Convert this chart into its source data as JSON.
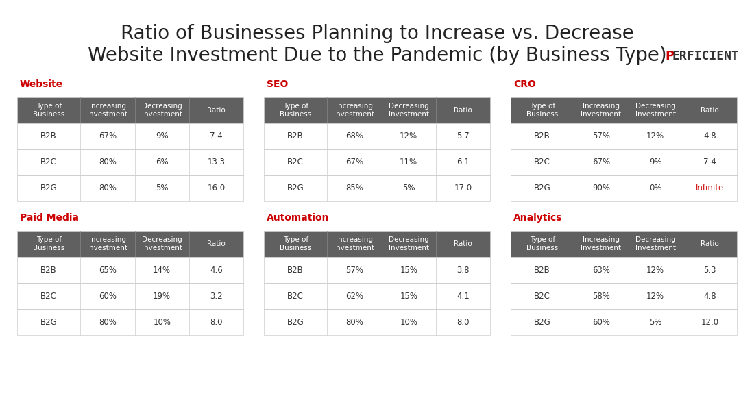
{
  "title": "Ratio of Businesses Planning to Increase vs. Decrease\nWebsite Investment Due to the Pandemic (by Business Type)",
  "title_fontsize": 20,
  "background_color": "#ffffff",
  "header_bg": "#606060",
  "header_fg": "#ffffff",
  "row_bg": "#ffffff",
  "row_fg": "#333333",
  "border_color": "#cccccc",
  "section_title_color": "#cc0000",
  "infinite_color": "#cc0000",
  "col_headers": [
    "Type of\nBusiness",
    "Increasing\nInvestment",
    "Decreasing\nInvestment",
    "Ratio"
  ],
  "tables": [
    {
      "title": "Website",
      "rows": [
        [
          "B2B",
          "67%",
          "9%",
          "7.4"
        ],
        [
          "B2C",
          "80%",
          "6%",
          "13.3"
        ],
        [
          "B2G",
          "80%",
          "5%",
          "16.0"
        ]
      ]
    },
    {
      "title": "SEO",
      "rows": [
        [
          "B2B",
          "68%",
          "12%",
          "5.7"
        ],
        [
          "B2C",
          "67%",
          "11%",
          "6.1"
        ],
        [
          "B2G",
          "85%",
          "5%",
          "17.0"
        ]
      ]
    },
    {
      "title": "CRO",
      "rows": [
        [
          "B2B",
          "57%",
          "12%",
          "4.8"
        ],
        [
          "B2C",
          "67%",
          "9%",
          "7.4"
        ],
        [
          "B2G",
          "90%",
          "0%",
          "Infinite"
        ]
      ]
    },
    {
      "title": "Paid Media",
      "rows": [
        [
          "B2B",
          "65%",
          "14%",
          "4.6"
        ],
        [
          "B2C",
          "60%",
          "19%",
          "3.2"
        ],
        [
          "B2G",
          "80%",
          "10%",
          "8.0"
        ]
      ]
    },
    {
      "title": "Automation",
      "rows": [
        [
          "B2B",
          "57%",
          "15%",
          "3.8"
        ],
        [
          "B2C",
          "62%",
          "15%",
          "4.1"
        ],
        [
          "B2G",
          "80%",
          "10%",
          "8.0"
        ]
      ]
    },
    {
      "title": "Analytics",
      "rows": [
        [
          "B2B",
          "63%",
          "12%",
          "5.3"
        ],
        [
          "B2C",
          "58%",
          "12%",
          "4.8"
        ],
        [
          "B2G",
          "60%",
          "5%",
          "12.0"
        ]
      ]
    }
  ],
  "logo_text": "ERFICIENT",
  "logo_p_color": "#cc0000",
  "logo_rest_color": "#333333"
}
